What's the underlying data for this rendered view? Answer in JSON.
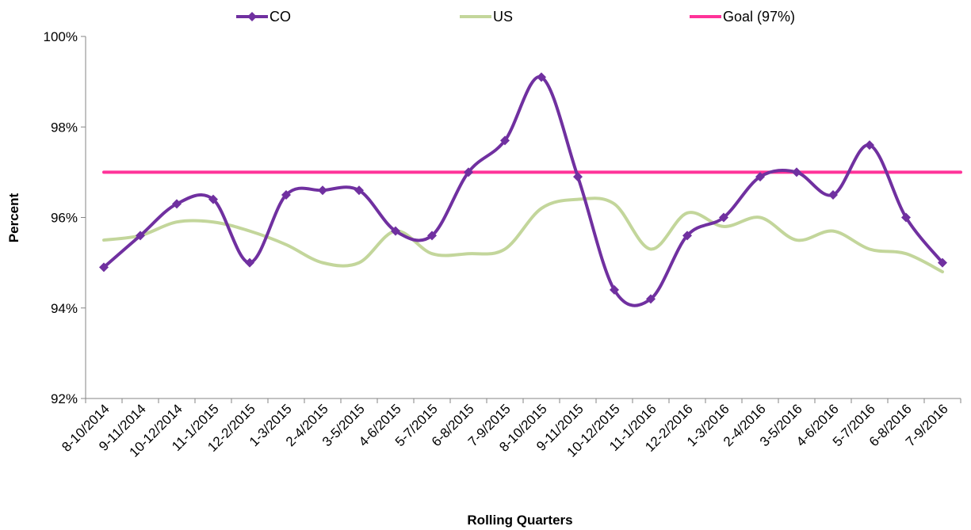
{
  "chart_data": {
    "type": "line",
    "title": "",
    "xlabel": "Rolling Quarters",
    "ylabel": "Percent",
    "ylim": [
      92,
      100
    ],
    "y_ticks": [
      92,
      94,
      96,
      98,
      100
    ],
    "y_tick_labels": [
      "92%",
      "94%",
      "96%",
      "98%",
      "100%"
    ],
    "grid": false,
    "legend_position": "top",
    "categories": [
      "8-10/2014",
      "9-11/2014",
      "10-12/2014",
      "11-1/2015",
      "12-2/2015",
      "1-3/2015",
      "2-4/2015",
      "3-5/2015",
      "4-6/2015",
      "5-7/2015",
      "6-8/2015",
      "7-9/2015",
      "8-10/2015",
      "9-11/2015",
      "10-12/2015",
      "11-1/2016",
      "12-2/2016",
      "1-3/2016",
      "2-4/2016",
      "3-5/2016",
      "4-6/2016",
      "5-7/2016",
      "6-8/2016",
      "7-9/2016"
    ],
    "series": [
      {
        "name": "CO",
        "color": "#7030a0",
        "marker": "diamond",
        "values": [
          94.9,
          95.6,
          96.3,
          96.4,
          95.0,
          96.5,
          96.6,
          96.6,
          95.7,
          95.6,
          97.0,
          97.7,
          99.1,
          96.9,
          94.4,
          94.2,
          95.6,
          96.0,
          96.9,
          97.0,
          96.5,
          97.6,
          96.0,
          95.0
        ]
      },
      {
        "name": "US",
        "color": "#c3d69b",
        "marker": "none",
        "values": [
          95.5,
          95.6,
          95.9,
          95.9,
          95.7,
          95.4,
          95.0,
          95.0,
          95.7,
          95.2,
          95.2,
          95.3,
          96.2,
          96.4,
          96.3,
          95.3,
          96.1,
          95.8,
          96.0,
          95.5,
          95.7,
          95.3,
          95.2,
          94.8
        ]
      },
      {
        "name": "Goal (97%)",
        "color": "#ff3399",
        "marker": "none",
        "values": [
          97,
          97,
          97,
          97,
          97,
          97,
          97,
          97,
          97,
          97,
          97,
          97,
          97,
          97,
          97,
          97,
          97,
          97,
          97,
          97,
          97,
          97,
          97,
          97
        ]
      }
    ]
  }
}
